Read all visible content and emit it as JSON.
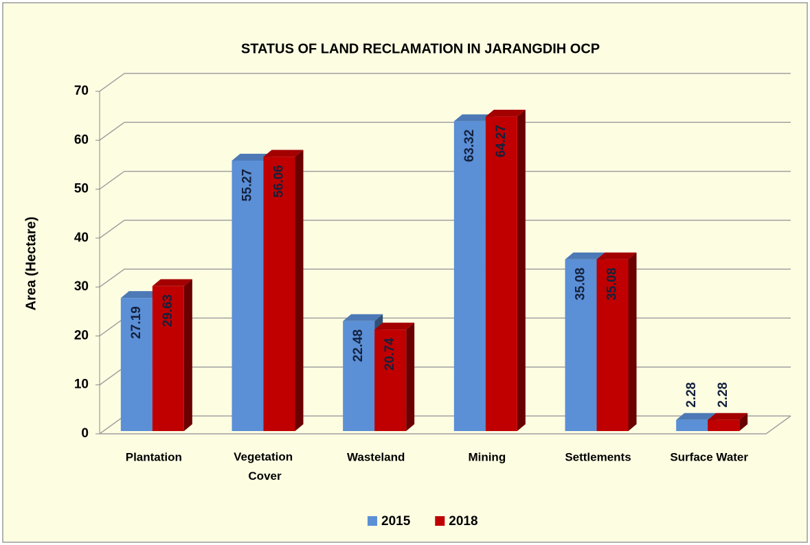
{
  "chart_data": {
    "type": "bar3d",
    "title": "STATUS OF  LAND RECLAMATION IN JARANGDIH OCP",
    "y_label": "Area (Hectare)",
    "categories": [
      "Plantation",
      "Vegetation Cover",
      "Wasteland",
      "Mining",
      "Settlements",
      "Surface Water"
    ],
    "series": [
      {
        "name": "2015",
        "color": "#5b8fd6",
        "values": [
          27.19,
          55.27,
          22.48,
          63.32,
          35.08,
          2.28
        ]
      },
      {
        "name": "2018",
        "color": "#c00000",
        "values": [
          29.63,
          56.06,
          20.74,
          64.27,
          35.08,
          2.28
        ]
      }
    ],
    "ylim": [
      0,
      70
    ],
    "yticks": [
      0,
      10,
      20,
      30,
      40,
      50,
      60,
      70
    ],
    "grid": true,
    "legend": "bottom"
  }
}
